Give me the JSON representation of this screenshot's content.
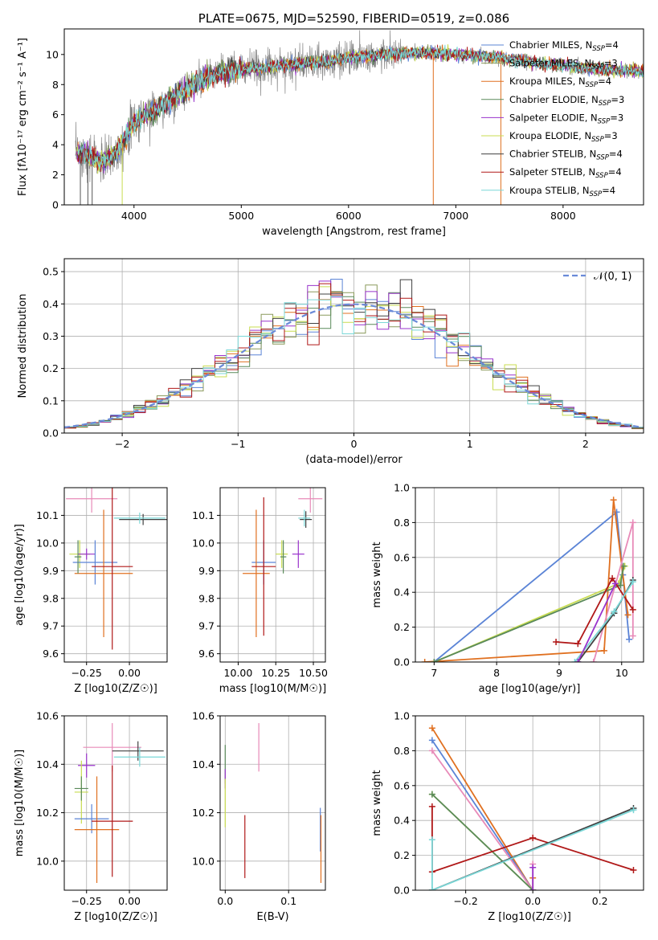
{
  "colors": {
    "Chabrier MILES": "#5b84d6",
    "Salpeter MILES": "#8a9a5b",
    "Kroupa MILES": "#e07020",
    "Chabrier ELODIE": "#5a8a5a",
    "Salpeter ELODIE": "#9933cc",
    "Kroupa ELODIE": "#c8dc50",
    "Chabrier STELIB": "#404040",
    "Salpeter STELIB": "#b01818",
    "Kroupa STELIB": "#7ad7d7",
    "pink": "#e88ab8",
    "normal": "#6a8ad8"
  },
  "chart_data": [
    {
      "id": "spectrum",
      "type": "line",
      "title": "PLATE=0675, MJD=52590, FIBERID=0519, z=0.086",
      "xlabel": "wavelength [Angstrom, rest frame]",
      "ylabel": "Flux [fλ10⁻¹⁷ erg cm⁻² s⁻¹ A⁻¹]",
      "xlim": [
        3350,
        8750
      ],
      "ylim": [
        0,
        11.7
      ],
      "xticks": [
        4000,
        5000,
        6000,
        7000,
        8000
      ],
      "yticks": [
        0,
        2,
        4,
        6,
        8,
        10
      ],
      "data_trend": {
        "x": [
          3450,
          3600,
          3700,
          3800,
          3900,
          4000,
          4200,
          4400,
          4600,
          4800,
          5000,
          5200,
          5400,
          5600,
          5800,
          6000,
          6200,
          6400,
          6600,
          6800,
          7000,
          7200,
          7400,
          7600,
          7800,
          8000,
          8200,
          8400,
          8700
        ],
        "y": [
          3.5,
          3.3,
          2.8,
          3.2,
          4.2,
          5.5,
          6.3,
          7.2,
          8.2,
          8.8,
          9.0,
          9.1,
          9.3,
          9.4,
          9.5,
          9.8,
          9.9,
          10.0,
          10.1,
          10.1,
          10.0,
          9.9,
          9.8,
          9.6,
          9.4,
          9.3,
          9.1,
          9.0,
          8.9
        ]
      },
      "legend_position": "right",
      "legend": [
        "Chabrier MILES, N_SSP=4",
        "Salpeter MILES, N_SSP=3",
        "Kroupa MILES, N_SSP=4",
        "Chabrier ELODIE, N_SSP=3",
        "Salpeter ELODIE, N_SSP=3",
        "Kroupa ELODIE, N_SSP=3",
        "Chabrier STELIB, N_SSP=4",
        "Salpeter STELIB, N_SSP=4",
        "Kroupa STELIB, N_SSP=4"
      ]
    },
    {
      "id": "residuals",
      "type": "histogram",
      "xlabel": "(data-model)/error",
      "ylabel": "Normed distribution",
      "xlim": [
        -2.5,
        2.5
      ],
      "ylim": [
        0,
        0.54
      ],
      "xticks": [
        -2,
        -1,
        0,
        1,
        2
      ],
      "yticks": [
        0.0,
        0.1,
        0.2,
        0.3,
        0.4,
        0.5
      ],
      "bin_width": 0.1,
      "series_means": [
        0.016,
        0.022,
        0.028,
        0.036,
        0.046,
        0.058,
        0.072,
        0.088,
        0.105,
        0.124,
        0.144,
        0.166,
        0.188,
        0.212,
        0.236,
        0.26,
        0.284,
        0.307,
        0.328,
        0.348,
        0.364,
        0.378,
        0.389,
        0.396,
        0.399,
        0.4,
        0.396,
        0.389,
        0.378,
        0.364,
        0.348,
        0.328,
        0.307,
        0.284,
        0.26,
        0.236,
        0.212,
        0.188,
        0.166,
        0.144,
        0.124,
        0.105,
        0.088,
        0.072,
        0.058,
        0.046,
        0.036,
        0.028,
        0.022,
        0.016
      ],
      "legend": "𝒩(0, 1)",
      "legend_position": "top-right"
    },
    {
      "id": "age_vs_Z",
      "type": "errorbar",
      "xlabel": "Z [log10(Z/Z☉)]",
      "ylabel": "age  [log10(age/yr)]",
      "xlim": [
        -0.38,
        0.22
      ],
      "ylim": [
        9.57,
        10.2
      ],
      "xticks": [
        -0.25,
        0.0
      ],
      "yticks": [
        9.6,
        9.7,
        9.8,
        9.9,
        10.0,
        10.1
      ],
      "points": [
        {
          "c": "pink",
          "x": -0.22,
          "xe": 0.15,
          "y": 10.16,
          "ye": 0.05
        },
        {
          "c": "Chabrier STELIB",
          "x": 0.08,
          "xe": 0.14,
          "y": 10.085,
          "ye": 0.02
        },
        {
          "c": "Kroupa STELIB",
          "x": 0.06,
          "xe": 0.15,
          "y": 10.09,
          "ye": 0.02
        },
        {
          "c": "Kroupa ELODIE",
          "x": -0.29,
          "xe": 0.06,
          "y": 9.96,
          "ye": 0.05
        },
        {
          "c": "Salpeter ELODIE",
          "x": -0.25,
          "xe": 0.05,
          "y": 9.96,
          "ye": 0.02
        },
        {
          "c": "Chabrier MILES",
          "x": -0.2,
          "xe": 0.13,
          "y": 9.93,
          "ye": 0.08
        },
        {
          "c": "Kroupa MILES",
          "x": -0.15,
          "xe": 0.17,
          "y": 9.89,
          "ye": 0.23
        },
        {
          "c": "Salpeter STELIB",
          "x": -0.1,
          "xe": 0.12,
          "y": 9.915,
          "ye": 0.3
        },
        {
          "c": "Chabrier ELODIE",
          "x": -0.3,
          "xe": 0.02,
          "y": 9.95,
          "ye": 0.06
        }
      ]
    },
    {
      "id": "age_vs_mass",
      "type": "errorbar",
      "xlabel": "mass [log10(M/M☉)]",
      "ylabel": "",
      "xlim": [
        9.88,
        10.58
      ],
      "ylim": [
        9.57,
        10.2
      ],
      "xticks": [
        10.0,
        10.25,
        10.5
      ],
      "yticks": [
        9.6,
        9.7,
        9.8,
        9.9,
        10.0,
        10.1
      ],
      "points": [
        {
          "c": "pink",
          "x": 10.48,
          "xe": 0.08,
          "y": 10.16,
          "ye": 0.05
        },
        {
          "c": "Chabrier STELIB",
          "x": 10.45,
          "xe": 0.04,
          "y": 10.085,
          "ye": 0.03
        },
        {
          "c": "Kroupa STELIB",
          "x": 10.44,
          "xe": 0.04,
          "y": 10.09,
          "ye": 0.03
        },
        {
          "c": "Kroupa ELODIE",
          "x": 10.29,
          "xe": 0.04,
          "y": 9.96,
          "ye": 0.05
        },
        {
          "c": "Salpeter ELODIE",
          "x": 10.4,
          "xe": 0.04,
          "y": 9.96,
          "ye": 0.05
        },
        {
          "c": "Chabrier MILES",
          "x": 10.17,
          "xe": 0.08,
          "y": 9.93,
          "ye": 0.08
        },
        {
          "c": "Kroupa MILES",
          "x": 10.12,
          "xe": 0.09,
          "y": 9.89,
          "ye": 0.23
        },
        {
          "c": "Salpeter STELIB",
          "x": 10.17,
          "xe": 0.08,
          "y": 9.915,
          "ye": 0.25
        },
        {
          "c": "Chabrier ELODIE",
          "x": 10.3,
          "xe": 0.02,
          "y": 9.95,
          "ye": 0.06
        }
      ]
    },
    {
      "id": "weight_vs_age",
      "type": "line",
      "xlabel": "age  [log10(age/yr)]",
      "ylabel": "mass weight",
      "xlim": [
        6.7,
        10.35
      ],
      "ylim": [
        0,
        1
      ],
      "xticks": [
        7,
        8,
        9,
        10
      ],
      "yticks": [
        0.0,
        0.2,
        0.4,
        0.6,
        0.8,
        1.0
      ],
      "series": [
        {
          "c": "Chabrier MILES",
          "x": [
            7.0,
            9.92,
            10.02,
            10.12
          ],
          "y": [
            0.0,
            0.86,
            0.5,
            0.13
          ]
        },
        {
          "c": "Kroupa MILES",
          "x": [
            6.85,
            9.72,
            9.87,
            10.1
          ],
          "y": [
            0.0,
            0.065,
            0.93,
            0.27
          ]
        },
        {
          "c": "Kroupa ELODIE",
          "x": [
            7.0,
            9.95,
            10.05
          ],
          "y": [
            0.0,
            0.45,
            0.55
          ]
        },
        {
          "c": "Chabrier ELODIE",
          "x": [
            7.0,
            9.98,
            10.03
          ],
          "y": [
            0.0,
            0.44,
            0.55
          ]
        },
        {
          "c": "pink",
          "x": [
            9.55,
            10.18,
            10.18
          ],
          "y": [
            0.0,
            0.8,
            0.15
          ]
        },
        {
          "c": "Salpeter STELIB",
          "x": [
            8.95,
            9.3,
            9.85,
            10.18
          ],
          "y": [
            0.115,
            0.105,
            0.48,
            0.3
          ]
        },
        {
          "c": "Chabrier STELIB",
          "x": [
            9.3,
            9.88,
            10.18
          ],
          "y": [
            0.0,
            0.28,
            0.47
          ]
        },
        {
          "c": "Kroupa STELIB",
          "x": [
            9.25,
            9.88,
            10.18
          ],
          "y": [
            0.0,
            0.29,
            0.46
          ]
        },
        {
          "c": "Salpeter ELODIE",
          "x": [
            9.3,
            9.9
          ],
          "y": [
            0.0,
            0.45
          ]
        }
      ]
    },
    {
      "id": "mass_vs_Z",
      "type": "errorbar",
      "xlabel": "Z [log10(Z/Z☉)]",
      "ylabel": "mass [log10(M/M☉)]",
      "xlim": [
        -0.38,
        0.22
      ],
      "ylim": [
        9.88,
        10.6
      ],
      "xticks": [
        -0.25,
        0.0
      ],
      "yticks": [
        10.0,
        10.2,
        10.4,
        10.6
      ],
      "points": [
        {
          "c": "pink",
          "x": -0.1,
          "xe": 0.17,
          "y": 10.47,
          "ye": 0.1
        },
        {
          "c": "Chabrier STELIB",
          "x": 0.05,
          "xe": 0.15,
          "y": 10.455,
          "ye": 0.04
        },
        {
          "c": "Kroupa STELIB",
          "x": 0.06,
          "xe": 0.15,
          "y": 10.43,
          "ye": 0.04
        },
        {
          "c": "Salpeter ELODIE",
          "x": -0.25,
          "xe": 0.05,
          "y": 10.395,
          "ye": 0.05
        },
        {
          "c": "Kroupa ELODIE",
          "x": -0.28,
          "xe": 0.04,
          "y": 10.285,
          "ye": 0.13
        },
        {
          "c": "Chabrier ELODIE",
          "x": -0.28,
          "xe": 0.04,
          "y": 10.3,
          "ye": 0.05
        },
        {
          "c": "Chabrier MILES",
          "x": -0.22,
          "xe": 0.1,
          "y": 10.175,
          "ye": 0.06
        },
        {
          "c": "Kroupa MILES",
          "x": -0.19,
          "xe": 0.13,
          "y": 10.13,
          "ye": 0.22
        },
        {
          "c": "Salpeter STELIB",
          "x": -0.1,
          "xe": 0.12,
          "y": 10.165,
          "ye": 0.23
        }
      ]
    },
    {
      "id": "mass_vs_ebv",
      "type": "errorbar",
      "xlabel": "E(B-V)",
      "ylabel": "",
      "xlim": [
        -0.008,
        0.158
      ],
      "ylim": [
        9.88,
        10.6
      ],
      "xticks": [
        0.0,
        0.1
      ],
      "yticks": [
        10.0,
        10.2,
        10.4,
        10.6
      ],
      "points": [
        {
          "c": "Chabrier ELODIE",
          "x": 0.0,
          "xe": 0,
          "y": 10.4,
          "ye": 0.08
        },
        {
          "c": "Salpeter ELODIE",
          "x": 0.0,
          "xe": 0,
          "y": 10.34,
          "ye": 0.04
        },
        {
          "c": "Kroupa ELODIE",
          "x": 0.0,
          "xe": 0,
          "y": 10.24,
          "ye": 0.1
        },
        {
          "c": "pink",
          "x": 0.053,
          "xe": 0,
          "y": 10.47,
          "ye": 0.1
        },
        {
          "c": "Salpeter STELIB",
          "x": 0.031,
          "xe": 0,
          "y": 10.06,
          "ye": 0.13
        },
        {
          "c": "Chabrier MILES",
          "x": 0.15,
          "xe": 0,
          "y": 10.13,
          "ye": 0.09
        },
        {
          "c": "Kroupa MILES",
          "x": 0.151,
          "xe": 0,
          "y": 10.05,
          "ye": 0.14
        }
      ]
    },
    {
      "id": "weight_vs_Z",
      "type": "line",
      "xlabel": "Z [log10(Z/Z☉)]",
      "ylabel": "mass weight",
      "xlim": [
        -0.35,
        0.33
      ],
      "ylim": [
        0,
        1
      ],
      "xticks": [
        -0.2,
        0.0,
        0.2
      ],
      "yticks": [
        0.0,
        0.2,
        0.4,
        0.6,
        0.8,
        1.0
      ],
      "series": [
        {
          "c": "Kroupa MILES",
          "x": [
            -0.3,
            0.0,
            0.0
          ],
          "y": [
            0.93,
            0.0,
            0.07
          ]
        },
        {
          "c": "Chabrier MILES",
          "x": [
            -0.3,
            0.0
          ],
          "y": [
            0.86,
            0.0
          ]
        },
        {
          "c": "pink",
          "x": [
            -0.3,
            0.0,
            0.0
          ],
          "y": [
            0.8,
            0.0,
            0.15
          ]
        },
        {
          "c": "Kroupa ELODIE",
          "x": [
            -0.3,
            0.0
          ],
          "y": [
            0.55,
            0.0
          ]
        },
        {
          "c": "Chabrier ELODIE",
          "x": [
            -0.3,
            0.0
          ],
          "y": [
            0.55,
            0.0
          ]
        },
        {
          "c": "Salpeter STELIB",
          "x": [
            -0.3,
            -0.3,
            0.0,
            0.3
          ],
          "y": [
            0.48,
            0.105,
            0.3,
            0.115
          ]
        },
        {
          "c": "Chabrier STELIB",
          "x": [
            -0.3,
            0.3
          ],
          "y": [
            0.0,
            0.47
          ]
        },
        {
          "c": "Kroupa STELIB",
          "x": [
            -0.3,
            -0.3,
            0.3
          ],
          "y": [
            0.29,
            0.0,
            0.46
          ]
        },
        {
          "c": "Salpeter ELODIE",
          "x": [
            0.0,
            0.0
          ],
          "y": [
            0.0,
            0.13
          ]
        }
      ]
    }
  ]
}
